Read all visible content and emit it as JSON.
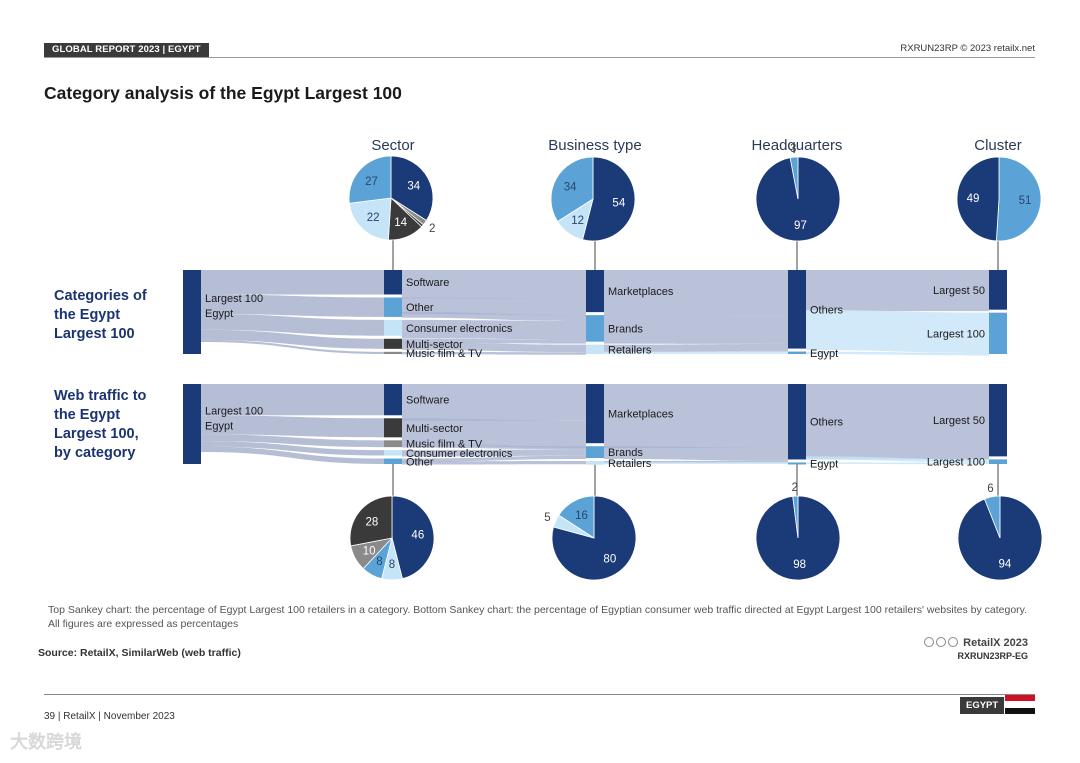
{
  "header": {
    "badge": "GLOBAL REPORT 2023 | EGYPT",
    "right": "RXRUN23RP © 2023 retailx.net"
  },
  "title": "Category analysis of the Egypt Largest 100",
  "sections": {
    "top": [
      "Categories of",
      "the Egypt",
      "Largest 100"
    ],
    "bottom": [
      "Web traffic to",
      "the Egypt",
      "Largest 100,",
      "by category"
    ]
  },
  "columns": [
    "Sector",
    "Business type",
    "Headquarters",
    "Cluster"
  ],
  "colors": {
    "navy": "#1b3a78",
    "mid": "#5ba3d6",
    "light": "#c5e4f7",
    "dark": "#3a3a3a",
    "grey": "#8a8a8a",
    "flow": "#a9b3cf"
  },
  "chart_data": [
    {
      "type": "pie",
      "title": "Sector (Categories of the Egypt Largest 100)",
      "slices": [
        {
          "label": "34",
          "value": 34,
          "color": "#1b3a78"
        },
        {
          "label": "2",
          "value": 2,
          "color": "#8a8a8a"
        },
        {
          "label": "1",
          "value": 1,
          "color": "#3a3a3a"
        },
        {
          "label": "14",
          "value": 14,
          "color": "#3a3a3a"
        },
        {
          "label": "22",
          "value": 22,
          "color": "#c5e4f7"
        },
        {
          "label": "27",
          "value": 27,
          "color": "#5ba3d6"
        }
      ]
    },
    {
      "type": "pie",
      "title": "Business type (Categories of the Egypt Largest 100)",
      "slices": [
        {
          "label": "54",
          "value": 54,
          "color": "#1b3a78"
        },
        {
          "label": "12",
          "value": 12,
          "color": "#c5e4f7"
        },
        {
          "label": "34",
          "value": 34,
          "color": "#5ba3d6"
        }
      ]
    },
    {
      "type": "pie",
      "title": "Headquarters (Categories of the Egypt Largest 100)",
      "slices": [
        {
          "label": "97",
          "value": 97,
          "color": "#1b3a78"
        },
        {
          "label": "3",
          "value": 3,
          "color": "#5ba3d6"
        }
      ]
    },
    {
      "type": "pie",
      "title": "Cluster (Categories of the Egypt Largest 100)",
      "slices": [
        {
          "label": "51",
          "value": 51,
          "color": "#5ba3d6"
        },
        {
          "label": "49",
          "value": 49,
          "color": "#1b3a78"
        }
      ]
    },
    {
      "type": "pie",
      "title": "Sector (Web traffic)",
      "slices": [
        {
          "label": "46",
          "value": 46,
          "color": "#1b3a78"
        },
        {
          "label": "8",
          "value": 8,
          "color": "#c5e4f7"
        },
        {
          "label": "8",
          "value": 8,
          "color": "#5ba3d6"
        },
        {
          "label": "10",
          "value": 10,
          "color": "#8a8a8a"
        },
        {
          "label": "28",
          "value": 28,
          "color": "#3a3a3a"
        }
      ]
    },
    {
      "type": "pie",
      "title": "Business type (Web traffic)",
      "slices": [
        {
          "label": "80",
          "value": 80,
          "color": "#1b3a78"
        },
        {
          "label": "5",
          "value": 5,
          "color": "#c5e4f7"
        },
        {
          "label": "16",
          "value": 16,
          "color": "#5ba3d6"
        }
      ]
    },
    {
      "type": "pie",
      "title": "Headquarters (Web traffic)",
      "slices": [
        {
          "label": "98",
          "value": 98,
          "color": "#1b3a78"
        },
        {
          "label": "2",
          "value": 2,
          "color": "#5ba3d6"
        }
      ]
    },
    {
      "type": "pie",
      "title": "Cluster (Web traffic)",
      "slices": [
        {
          "label": "94",
          "value": 94,
          "color": "#1b3a78"
        },
        {
          "label": "6",
          "value": 6,
          "color": "#5ba3d6"
        }
      ]
    },
    {
      "type": "sankey",
      "title": "Categories of the Egypt Largest 100",
      "source": "Largest 100 Egypt",
      "sector": [
        {
          "label": "Software",
          "value": 34
        },
        {
          "label": "Other",
          "value": 27
        },
        {
          "label": "Consumer electronics",
          "value": 22
        },
        {
          "label": "Multi-sector",
          "value": 14
        },
        {
          "label": "Music film & TV",
          "value": 3
        }
      ],
      "business_type": [
        {
          "label": "Marketplaces",
          "value": 54
        },
        {
          "label": "Brands",
          "value": 34
        },
        {
          "label": "Retailers",
          "value": 12
        }
      ],
      "headquarters": [
        {
          "label": "Others",
          "value": 97
        },
        {
          "label": "Egypt",
          "value": 3
        }
      ],
      "cluster": [
        {
          "label": "Largest 50",
          "value": 49
        },
        {
          "label": "Largest 100",
          "value": 51
        }
      ]
    },
    {
      "type": "sankey",
      "title": "Web traffic to the Egypt Largest 100, by category",
      "source": "Largest 100 Egypt",
      "sector": [
        {
          "label": "Software",
          "value": 46
        },
        {
          "label": "Multi-sector",
          "value": 28
        },
        {
          "label": "Music film & TV",
          "value": 10
        },
        {
          "label": "Consumer electronics",
          "value": 8
        },
        {
          "label": "Other",
          "value": 8
        }
      ],
      "business_type": [
        {
          "label": "Marketplaces",
          "value": 80
        },
        {
          "label": "Brands",
          "value": 16
        },
        {
          "label": "Retailers",
          "value": 5
        }
      ],
      "headquarters": [
        {
          "label": "Others",
          "value": 98
        },
        {
          "label": "Egypt",
          "value": 2
        }
      ],
      "cluster": [
        {
          "label": "Largest 50",
          "value": 94
        },
        {
          "label": "Largest 100",
          "value": 6
        }
      ]
    }
  ],
  "caption": "Top Sankey chart:  the percentage of Egypt Largest 100 retailers in a category. Bottom Sankey chart:  the percentage of Egyptian consumer web traffic directed at Egypt Largest 100 retailers' websites by category. All figures are expressed as percentages",
  "source": "Source: RetailX, SimilarWeb (web traffic)",
  "brand": {
    "name": "RetailX 2023",
    "code": "RXRUN23RP-EG"
  },
  "footer": {
    "left": "39 | RetailX | November 2023",
    "badge": "EGYPT"
  },
  "watermark": "大数跨境"
}
